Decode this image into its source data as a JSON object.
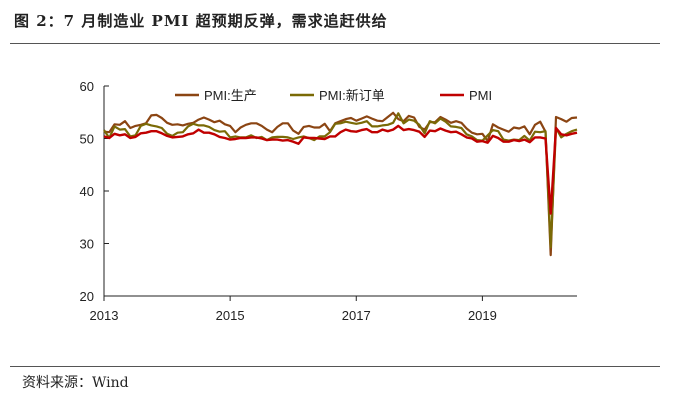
{
  "figure": {
    "title": "图 2：7 月制造业 PMI 超预期反弹，需求追赶供给",
    "source": "资料来源：Wind"
  },
  "chart_data": {
    "type": "line",
    "title": "",
    "xlabel": "",
    "ylabel": "",
    "ylim": [
      20,
      60
    ],
    "yticks": [
      20,
      30,
      40,
      50,
      60
    ],
    "xlim": [
      "2013-01",
      "2020-07"
    ],
    "xticks": [
      "2013",
      "2015",
      "2017",
      "2019"
    ],
    "grid": false,
    "legend_position": "top",
    "x": [
      "2013-01",
      "2013-02",
      "2013-03",
      "2013-04",
      "2013-05",
      "2013-06",
      "2013-07",
      "2013-08",
      "2013-09",
      "2013-10",
      "2013-11",
      "2013-12",
      "2014-01",
      "2014-02",
      "2014-03",
      "2014-04",
      "2014-05",
      "2014-06",
      "2014-07",
      "2014-08",
      "2014-09",
      "2014-10",
      "2014-11",
      "2014-12",
      "2015-01",
      "2015-02",
      "2015-03",
      "2015-04",
      "2015-05",
      "2015-06",
      "2015-07",
      "2015-08",
      "2015-09",
      "2015-10",
      "2015-11",
      "2015-12",
      "2016-01",
      "2016-02",
      "2016-03",
      "2016-04",
      "2016-05",
      "2016-06",
      "2016-07",
      "2016-08",
      "2016-09",
      "2016-10",
      "2016-11",
      "2016-12",
      "2017-01",
      "2017-02",
      "2017-03",
      "2017-04",
      "2017-05",
      "2017-06",
      "2017-07",
      "2017-08",
      "2017-09",
      "2017-10",
      "2017-11",
      "2017-12",
      "2018-01",
      "2018-02",
      "2018-03",
      "2018-04",
      "2018-05",
      "2018-06",
      "2018-07",
      "2018-08",
      "2018-09",
      "2018-10",
      "2018-11",
      "2018-12",
      "2019-01",
      "2019-02",
      "2019-03",
      "2019-04",
      "2019-05",
      "2019-06",
      "2019-07",
      "2019-08",
      "2019-09",
      "2019-10",
      "2019-11",
      "2019-12",
      "2020-01",
      "2020-02",
      "2020-03",
      "2020-04",
      "2020-05",
      "2020-06",
      "2020-07"
    ],
    "series": [
      {
        "name": "PMI:生产",
        "color": "#8B4513",
        "values": [
          51.3,
          51.2,
          52.7,
          52.6,
          53.3,
          52.0,
          52.4,
          52.6,
          52.9,
          54.4,
          54.5,
          53.9,
          53.0,
          52.6,
          52.7,
          52.5,
          52.8,
          53.0,
          53.6,
          54.0,
          53.6,
          53.1,
          53.4,
          52.7,
          52.4,
          51.2,
          52.1,
          52.6,
          52.9,
          52.9,
          52.4,
          51.7,
          51.2,
          52.2,
          52.9,
          52.9,
          51.5,
          50.9,
          52.2,
          52.4,
          52.1,
          52.1,
          52.8,
          51.4,
          52.9,
          53.3,
          53.7,
          53.9,
          53.4,
          53.8,
          54.2,
          53.8,
          53.4,
          53.3,
          54.1,
          54.9,
          53.7,
          53.3,
          54.3,
          54.0,
          52.2,
          51.7,
          53.1,
          53.1,
          54.1,
          53.6,
          53.0,
          53.3,
          53.0,
          51.9,
          51.1,
          50.8,
          50.9,
          49.5,
          52.7,
          52.1,
          51.7,
          51.3,
          52.1,
          51.9,
          52.3,
          50.8,
          52.6,
          53.2,
          51.3,
          27.8,
          54.1,
          53.7,
          53.2,
          53.9,
          54.0
        ]
      },
      {
        "name": "PMI:新订单",
        "color": "#7A6A06",
        "values": [
          51.6,
          50.1,
          52.3,
          51.7,
          51.8,
          50.4,
          50.6,
          52.4,
          52.8,
          52.5,
          52.3,
          52.0,
          50.9,
          50.5,
          51.1,
          51.2,
          52.3,
          52.8,
          52.5,
          52.5,
          52.2,
          51.6,
          51.3,
          51.4,
          50.2,
          50.4,
          50.2,
          50.2,
          50.6,
          50.1,
          50.3,
          49.7,
          50.2,
          50.3,
          50.3,
          50.2,
          49.9,
          50.2,
          50.4,
          50.1,
          49.7,
          50.4,
          50.4,
          51.2,
          52.8,
          52.9,
          53.2,
          53.0,
          52.8,
          53.0,
          53.3,
          52.3,
          52.3,
          52.5,
          52.6,
          53.0,
          54.8,
          52.9,
          53.6,
          53.4,
          52.6,
          51.0,
          53.3,
          52.9,
          53.8,
          53.2,
          52.3,
          52.2,
          52.0,
          50.8,
          50.4,
          49.7,
          49.6,
          50.6,
          51.6,
          51.4,
          49.8,
          49.6,
          49.8,
          49.7,
          50.5,
          49.6,
          51.3,
          51.2,
          51.4,
          29.3,
          52.0,
          50.2,
          50.9,
          51.4,
          51.7
        ]
      },
      {
        "name": "PMI",
        "color": "#C00000",
        "values": [
          50.4,
          50.1,
          50.9,
          50.6,
          50.8,
          50.1,
          50.3,
          51.0,
          51.1,
          51.4,
          51.4,
          51.0,
          50.5,
          50.2,
          50.3,
          50.4,
          50.8,
          51.0,
          51.7,
          51.1,
          51.1,
          50.8,
          50.3,
          50.1,
          49.8,
          49.9,
          50.1,
          50.1,
          50.2,
          50.2,
          50.0,
          49.7,
          49.8,
          49.8,
          49.6,
          49.7,
          49.4,
          49.0,
          50.2,
          50.1,
          50.1,
          50.0,
          49.9,
          50.4,
          50.4,
          51.2,
          51.7,
          51.4,
          51.3,
          51.6,
          51.8,
          51.2,
          51.2,
          51.7,
          51.4,
          51.7,
          52.4,
          51.6,
          51.8,
          51.6,
          51.3,
          50.3,
          51.5,
          51.4,
          51.9,
          51.5,
          51.2,
          51.3,
          50.8,
          50.2,
          50.0,
          49.4,
          49.5,
          49.2,
          50.5,
          50.1,
          49.4,
          49.4,
          49.7,
          49.5,
          49.8,
          49.3,
          50.2,
          50.2,
          50.0,
          35.7,
          52.0,
          50.8,
          50.6,
          50.9,
          51.1
        ]
      }
    ]
  }
}
